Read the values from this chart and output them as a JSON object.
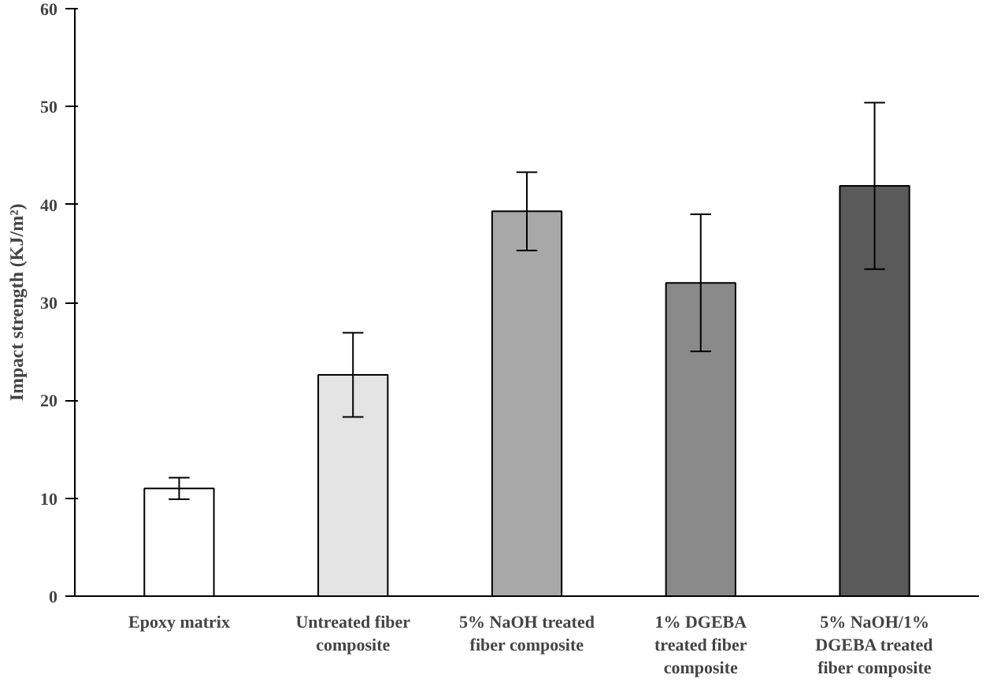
{
  "chart_data": {
    "type": "bar",
    "ylabel": "Impact strength (KJ/m²)",
    "categories": [
      "Epoxy matrix",
      "Untreated fiber composite",
      "5% NaOH treated fiber composite",
      "1% DGEBA treated fiber composite",
      "5% NaOH/1% DGEBA treated fiber composite"
    ],
    "values": [
      11,
      22.6,
      39.3,
      32,
      41.9
    ],
    "errors": [
      1.1,
      4.3,
      4,
      7,
      8.5
    ],
    "colors": [
      "#ffffff",
      "#e4e4e4",
      "#a8a8a8",
      "#8a8a8a",
      "#5a5a5a"
    ],
    "ylim": [
      0,
      60
    ],
    "yticks": [
      0,
      10,
      20,
      30,
      40,
      50,
      60
    ],
    "grid": false
  }
}
